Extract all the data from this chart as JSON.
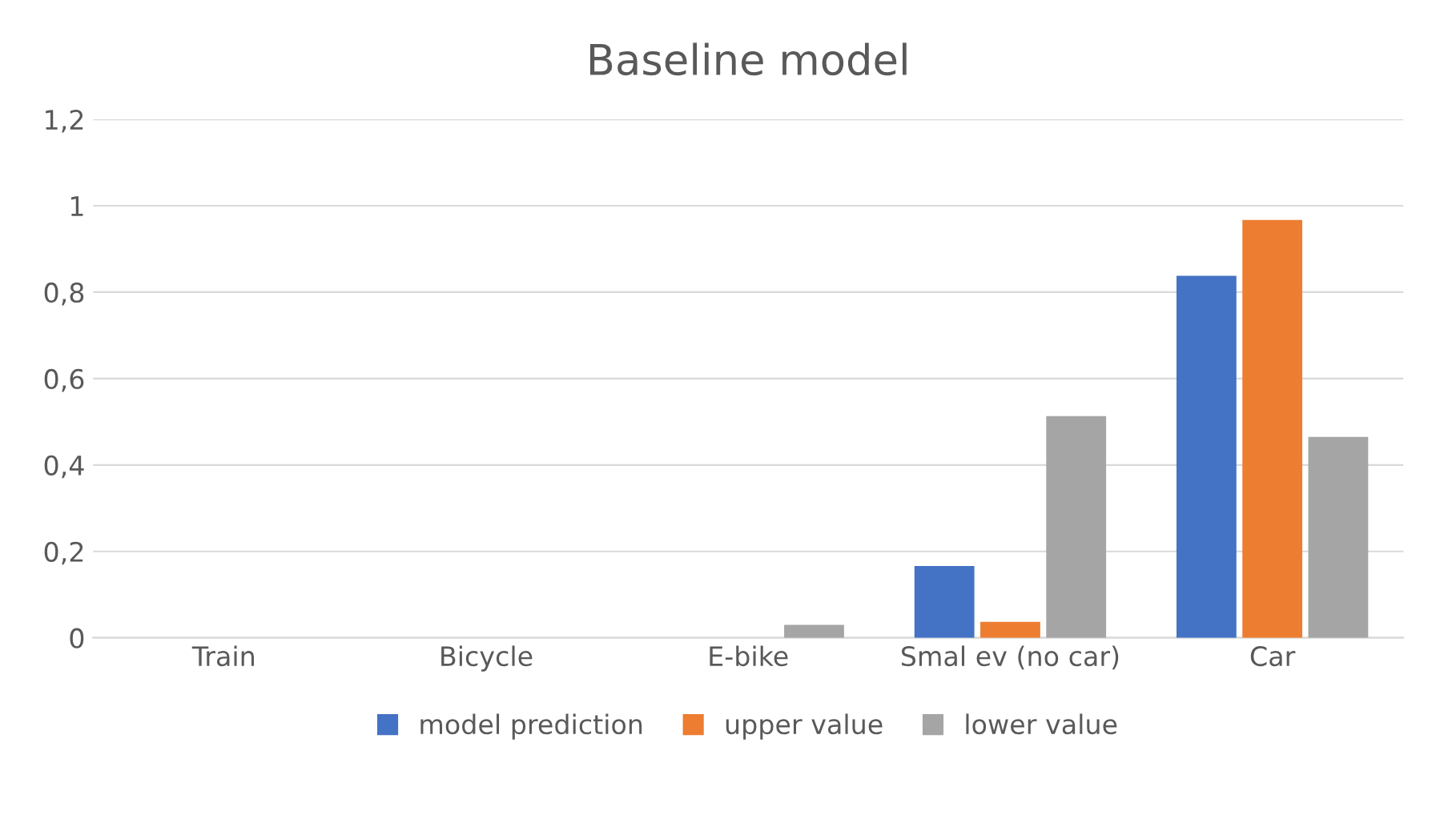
{
  "chart_data": {
    "type": "bar",
    "title": "Baseline model",
    "categories": [
      "Train",
      "Bicycle",
      "E-bike",
      "Smal ev (no car)",
      "Car"
    ],
    "series": [
      {
        "name": "model prediction",
        "color": "#4472c4",
        "values": [
          0,
          0,
          0,
          0.166,
          0.838
        ]
      },
      {
        "name": "upper value",
        "color": "#ed7d31",
        "values": [
          0,
          0,
          0,
          0.037,
          0.967
        ]
      },
      {
        "name": "lower value",
        "color": "#a5a5a5",
        "values": [
          0,
          0,
          0.03,
          0.513,
          0.465
        ]
      }
    ],
    "ylim": [
      0,
      1.2
    ],
    "yticks": [
      0,
      {
        "value": 0.2,
        "label": "0,2"
      },
      {
        "value": 0.4,
        "label": "0,4"
      },
      {
        "value": 0.6,
        "label": "0,6"
      },
      {
        "value": 0.8,
        "label": "0,8"
      },
      1,
      {
        "value": 1.2,
        "label": "1,2"
      }
    ],
    "grid": "y",
    "legend": "bottom"
  }
}
